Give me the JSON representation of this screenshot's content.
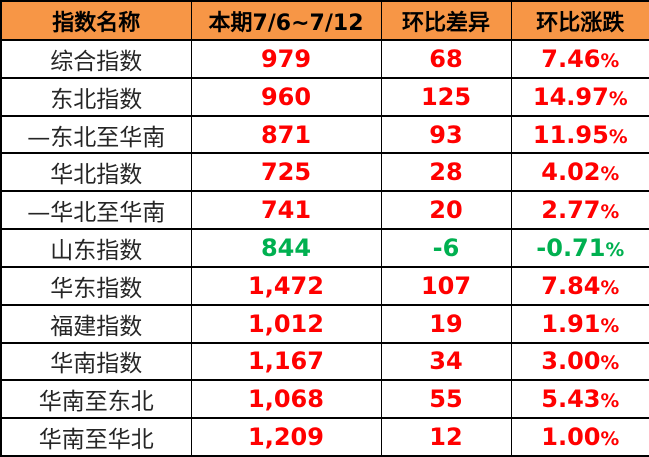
{
  "chart_data": {
    "type": "table",
    "columns": [
      "指数名称",
      "本期7/6~7/12",
      "环比差异",
      "环比涨跌"
    ],
    "rows": [
      [
        "综合指数",
        "979",
        "68",
        "7.46%"
      ],
      [
        "东北指数",
        "960",
        "125",
        "14.97%"
      ],
      [
        "—东北至华南",
        "871",
        "93",
        "11.95%"
      ],
      [
        "华北指数",
        "725",
        "28",
        "4.02%"
      ],
      [
        "—华北至华南",
        "741",
        "20",
        "2.77%"
      ],
      [
        "山东指数",
        "844",
        "-6",
        "-0.71%"
      ],
      [
        "华东指数",
        "1,472",
        "107",
        "7.84%"
      ],
      [
        "福建指数",
        "1,012",
        "19",
        "1.91%"
      ],
      [
        "华南指数",
        "1,167",
        "34",
        "3.00%"
      ],
      [
        "华南至东北",
        "1,068",
        "55",
        "5.43%"
      ],
      [
        "华南至华北",
        "1,209",
        "12",
        "1.00%"
      ]
    ]
  },
  "colors": {
    "header_bg": "#F79646",
    "up_text": "#FF0000",
    "down_text": "#00B050",
    "border": "#000000",
    "name_text": "#262626"
  }
}
